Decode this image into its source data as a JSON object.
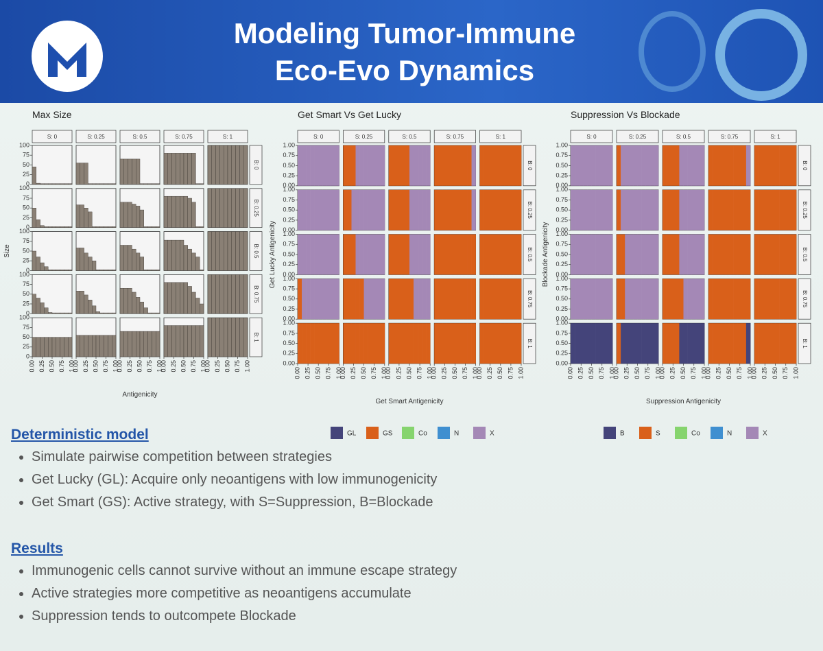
{
  "header": {
    "title_lines": [
      "Modeling Tumor-Immune",
      "Eco-Evo Dynamics"
    ]
  },
  "chart_data": [
    {
      "type": "bar",
      "title": "Max Size",
      "x_label": "Antigenicity",
      "y_label": "Size",
      "color": "#8a8075",
      "col_strips": [
        "S: 0",
        "S: 0.25",
        "S: 0.5",
        "S: 0.75",
        "S: 1"
      ],
      "row_strips": [
        "B: 0",
        "B: 0.25",
        "B: 0.5",
        "B: 0.75",
        "B: 1"
      ],
      "x": [
        0.05,
        0.15,
        0.25,
        0.35,
        0.45,
        0.55,
        0.65,
        0.75,
        0.85,
        0.95
      ],
      "xlim": [
        0,
        1
      ],
      "xticks": [
        {
          "value": 0,
          "label": "0.00"
        },
        {
          "value": 0.25,
          "label": "0.25"
        },
        {
          "value": 0.5,
          "label": "0.50"
        },
        {
          "value": 0.75,
          "label": "0.75"
        },
        {
          "value": 1,
          "label": "1.00"
        }
      ],
      "ylim": [
        0,
        100
      ],
      "yticks": [
        0,
        25,
        50,
        75,
        100
      ],
      "facets": [
        [
          [
            45,
            3,
            2,
            2,
            2,
            2,
            2,
            2,
            2,
            2
          ],
          [
            55,
            55,
            55,
            2,
            2,
            2,
            2,
            2,
            2,
            2
          ],
          [
            65,
            65,
            65,
            65,
            65,
            2,
            2,
            2,
            2,
            2
          ],
          [
            80,
            80,
            80,
            80,
            80,
            80,
            80,
            80,
            2,
            2
          ],
          [
            100,
            100,
            100,
            100,
            100,
            100,
            100,
            100,
            100,
            100
          ]
        ],
        [
          [
            50,
            20,
            5,
            2,
            2,
            2,
            2,
            2,
            2,
            2
          ],
          [
            58,
            58,
            50,
            40,
            2,
            2,
            2,
            2,
            2,
            2
          ],
          [
            65,
            65,
            65,
            60,
            55,
            45,
            2,
            2,
            2,
            2
          ],
          [
            80,
            80,
            80,
            80,
            80,
            80,
            75,
            65,
            2,
            2
          ],
          [
            100,
            100,
            100,
            100,
            100,
            100,
            100,
            100,
            100,
            100
          ]
        ],
        [
          [
            50,
            35,
            20,
            10,
            2,
            2,
            2,
            2,
            2,
            2
          ],
          [
            58,
            58,
            45,
            35,
            25,
            2,
            2,
            2,
            2,
            2
          ],
          [
            65,
            65,
            65,
            55,
            45,
            35,
            2,
            2,
            2,
            2
          ],
          [
            78,
            78,
            78,
            78,
            78,
            65,
            55,
            45,
            35,
            2
          ],
          [
            100,
            100,
            100,
            100,
            100,
            100,
            100,
            100,
            100,
            100
          ]
        ],
        [
          [
            50,
            40,
            28,
            15,
            3,
            2,
            2,
            2,
            2,
            2
          ],
          [
            58,
            58,
            48,
            35,
            20,
            5,
            2,
            2,
            2,
            2
          ],
          [
            65,
            65,
            65,
            55,
            42,
            30,
            15,
            2,
            2,
            2
          ],
          [
            80,
            80,
            80,
            80,
            80,
            80,
            70,
            55,
            40,
            25
          ],
          [
            100,
            100,
            100,
            100,
            100,
            100,
            100,
            100,
            100,
            100
          ]
        ],
        [
          [
            50,
            50,
            50,
            50,
            50,
            50,
            50,
            50,
            50,
            50
          ],
          [
            55,
            55,
            55,
            55,
            55,
            55,
            55,
            55,
            55,
            55
          ],
          [
            65,
            65,
            65,
            65,
            65,
            65,
            65,
            65,
            65,
            65
          ],
          [
            80,
            80,
            80,
            80,
            80,
            80,
            80,
            80,
            80,
            80
          ],
          [
            100,
            100,
            100,
            100,
            100,
            100,
            100,
            100,
            100,
            100
          ]
        ]
      ]
    },
    {
      "type": "tile",
      "title": "Get Smart Vs Get Lucky",
      "x_label": "Get Smart Antigenicity",
      "y_label": "Get Lucky Antigenicity",
      "col_strips": [
        "S: 0",
        "S: 0.25",
        "S: 0.5",
        "S: 0.75",
        "S: 1"
      ],
      "row_strips": [
        "B: 0",
        "B: 0.25",
        "B: 0.5",
        "B: 0.75",
        "B: 1"
      ],
      "x": [
        0.05,
        0.15,
        0.25,
        0.35,
        0.45,
        0.55,
        0.65,
        0.75,
        0.85,
        0.95
      ],
      "xlim": [
        0,
        1
      ],
      "xticks": [
        {
          "value": 0,
          "label": "0.00"
        },
        {
          "value": 0.25,
          "label": "0.25"
        },
        {
          "value": 0.5,
          "label": "0.50"
        },
        {
          "value": 0.75,
          "label": "0.75"
        },
        {
          "value": 1,
          "label": "1.00"
        }
      ],
      "ylim": [
        0,
        1
      ],
      "yticks": [
        {
          "value": 0,
          "label": "0.00"
        },
        {
          "value": 0.25,
          "label": "0.25"
        },
        {
          "value": 0.5,
          "label": "0.50"
        },
        {
          "value": 0.75,
          "label": "0.75"
        },
        {
          "value": 1,
          "label": "1.00"
        }
      ],
      "series": [
        {
          "name": "GL",
          "color": "#44447a"
        },
        {
          "name": "GS",
          "color": "#d9601a"
        },
        {
          "name": "Co",
          "color": "#86d46e"
        },
        {
          "name": "N",
          "color": "#3f8fd0"
        },
        {
          "name": "X",
          "color": "#a488b6"
        }
      ],
      "facets": [
        [
          [
            4,
            4,
            4,
            4,
            4,
            4,
            4,
            4,
            4,
            4
          ],
          [
            1,
            1,
            1,
            4,
            4,
            4,
            4,
            4,
            4,
            4
          ],
          [
            1,
            1,
            1,
            1,
            1,
            4,
            4,
            4,
            4,
            4
          ],
          [
            1,
            1,
            1,
            1,
            1,
            1,
            1,
            1,
            1,
            4
          ],
          [
            1,
            1,
            1,
            1,
            1,
            1,
            1,
            1,
            1,
            1
          ]
        ],
        [
          [
            4,
            4,
            4,
            4,
            4,
            4,
            4,
            4,
            4,
            4
          ],
          [
            1,
            1,
            4,
            4,
            4,
            4,
            4,
            4,
            4,
            4
          ],
          [
            1,
            1,
            1,
            1,
            1,
            4,
            4,
            4,
            4,
            4
          ],
          [
            1,
            1,
            1,
            1,
            1,
            1,
            1,
            1,
            1,
            4
          ],
          [
            1,
            1,
            1,
            1,
            1,
            1,
            1,
            1,
            1,
            1
          ]
        ],
        [
          [
            4,
            4,
            4,
            4,
            4,
            4,
            4,
            4,
            4,
            4
          ],
          [
            1,
            1,
            1,
            4,
            4,
            4,
            4,
            4,
            4,
            4
          ],
          [
            1,
            1,
            1,
            1,
            1,
            4,
            4,
            4,
            4,
            4
          ],
          [
            1,
            1,
            1,
            1,
            1,
            1,
            1,
            1,
            1,
            1
          ],
          [
            1,
            1,
            1,
            1,
            1,
            1,
            1,
            1,
            1,
            1
          ]
        ],
        [
          [
            1,
            4,
            4,
            4,
            4,
            4,
            4,
            4,
            4,
            4
          ],
          [
            1,
            1,
            1,
            1,
            1,
            4,
            4,
            4,
            4,
            4
          ],
          [
            1,
            1,
            1,
            1,
            1,
            1,
            4,
            4,
            4,
            4
          ],
          [
            1,
            1,
            1,
            1,
            1,
            1,
            1,
            1,
            1,
            1
          ],
          [
            1,
            1,
            1,
            1,
            1,
            1,
            1,
            1,
            1,
            1
          ]
        ],
        [
          [
            1,
            1,
            1,
            1,
            1,
            1,
            1,
            1,
            1,
            1
          ],
          [
            1,
            1,
            1,
            1,
            1,
            1,
            1,
            1,
            1,
            1
          ],
          [
            1,
            1,
            1,
            1,
            1,
            1,
            1,
            1,
            1,
            1
          ],
          [
            1,
            1,
            1,
            1,
            1,
            1,
            1,
            1,
            1,
            1
          ],
          [
            1,
            1,
            1,
            1,
            1,
            1,
            1,
            1,
            1,
            1
          ]
        ]
      ]
    },
    {
      "type": "tile",
      "title": "Suppression Vs Blockade",
      "x_label": "Suppression Antigenicity",
      "y_label": "Blockade Antigenicity",
      "col_strips": [
        "S: 0",
        "S: 0.25",
        "S: 0.5",
        "S: 0.75",
        "S: 1"
      ],
      "row_strips": [
        "B: 0",
        "B: 0.25",
        "B: 0.5",
        "B: 0.75",
        "B: 1"
      ],
      "x": [
        0.05,
        0.15,
        0.25,
        0.35,
        0.45,
        0.55,
        0.65,
        0.75,
        0.85,
        0.95
      ],
      "xlim": [
        0,
        1
      ],
      "xticks": [
        {
          "value": 0,
          "label": "0.00"
        },
        {
          "value": 0.25,
          "label": "0.25"
        },
        {
          "value": 0.5,
          "label": "0.50"
        },
        {
          "value": 0.75,
          "label": "0.75"
        },
        {
          "value": 1,
          "label": "1.00"
        }
      ],
      "ylim": [
        0,
        1
      ],
      "yticks": [
        {
          "value": 0,
          "label": "0.00"
        },
        {
          "value": 0.25,
          "label": "0.25"
        },
        {
          "value": 0.5,
          "label": "0.50"
        },
        {
          "value": 0.75,
          "label": "0.75"
        },
        {
          "value": 1,
          "label": "1.00"
        }
      ],
      "series": [
        {
          "name": "B",
          "color": "#44447a"
        },
        {
          "name": "S",
          "color": "#d9601a"
        },
        {
          "name": "Co",
          "color": "#86d46e"
        },
        {
          "name": "N",
          "color": "#3f8fd0"
        },
        {
          "name": "X",
          "color": "#a488b6"
        }
      ],
      "facets": [
        [
          [
            4,
            4,
            4,
            4,
            4,
            4,
            4,
            4,
            4,
            4
          ],
          [
            1,
            4,
            4,
            4,
            4,
            4,
            4,
            4,
            4,
            4
          ],
          [
            1,
            1,
            1,
            1,
            4,
            4,
            4,
            4,
            4,
            4
          ],
          [
            1,
            1,
            1,
            1,
            1,
            1,
            1,
            1,
            1,
            4
          ],
          [
            1,
            1,
            1,
            1,
            1,
            1,
            1,
            1,
            1,
            1
          ]
        ],
        [
          [
            4,
            4,
            4,
            4,
            4,
            4,
            4,
            4,
            4,
            4
          ],
          [
            1,
            4,
            4,
            4,
            4,
            4,
            4,
            4,
            4,
            4
          ],
          [
            1,
            1,
            1,
            1,
            4,
            4,
            4,
            4,
            4,
            4
          ],
          [
            1,
            1,
            1,
            1,
            1,
            1,
            1,
            1,
            1,
            1
          ],
          [
            1,
            1,
            1,
            1,
            1,
            1,
            1,
            1,
            1,
            1
          ]
        ],
        [
          [
            4,
            4,
            4,
            4,
            4,
            4,
            4,
            4,
            4,
            4
          ],
          [
            1,
            1,
            4,
            4,
            4,
            4,
            4,
            4,
            4,
            4
          ],
          [
            1,
            1,
            1,
            1,
            4,
            4,
            4,
            4,
            4,
            4
          ],
          [
            1,
            1,
            1,
            1,
            1,
            1,
            1,
            1,
            1,
            1
          ],
          [
            1,
            1,
            1,
            1,
            1,
            1,
            1,
            1,
            1,
            1
          ]
        ],
        [
          [
            4,
            4,
            4,
            4,
            4,
            4,
            4,
            4,
            4,
            4
          ],
          [
            1,
            1,
            4,
            4,
            4,
            4,
            4,
            4,
            4,
            4
          ],
          [
            1,
            1,
            1,
            1,
            1,
            4,
            4,
            4,
            4,
            4
          ],
          [
            1,
            1,
            1,
            1,
            1,
            1,
            1,
            1,
            1,
            1
          ],
          [
            1,
            1,
            1,
            1,
            1,
            1,
            1,
            1,
            1,
            1
          ]
        ],
        [
          [
            0,
            0,
            0,
            0,
            0,
            0,
            0,
            0,
            0,
            0
          ],
          [
            1,
            0,
            0,
            0,
            0,
            0,
            0,
            0,
            0,
            0
          ],
          [
            1,
            1,
            1,
            1,
            0,
            0,
            0,
            0,
            0,
            0
          ],
          [
            1,
            1,
            1,
            1,
            1,
            1,
            1,
            1,
            1,
            0
          ],
          [
            1,
            1,
            1,
            1,
            1,
            1,
            1,
            1,
            1,
            1
          ]
        ]
      ]
    }
  ],
  "sections": [
    {
      "heading": "Deterministic model",
      "items": [
        "Simulate pairwise competition between strategies",
        "Get Lucky (GL): Acquire only neoantigens with low immunogenicity",
        "Get Smart (GS): Active strategy, with S=Suppression, B=Blockade"
      ]
    },
    {
      "heading": "Results",
      "items": [
        "Immunogenic cells cannot survive without an immune escape strategy",
        "Active strategies more competitive as neoantigens accumulate",
        "Suppression tends to outcompete Blockade"
      ]
    }
  ]
}
